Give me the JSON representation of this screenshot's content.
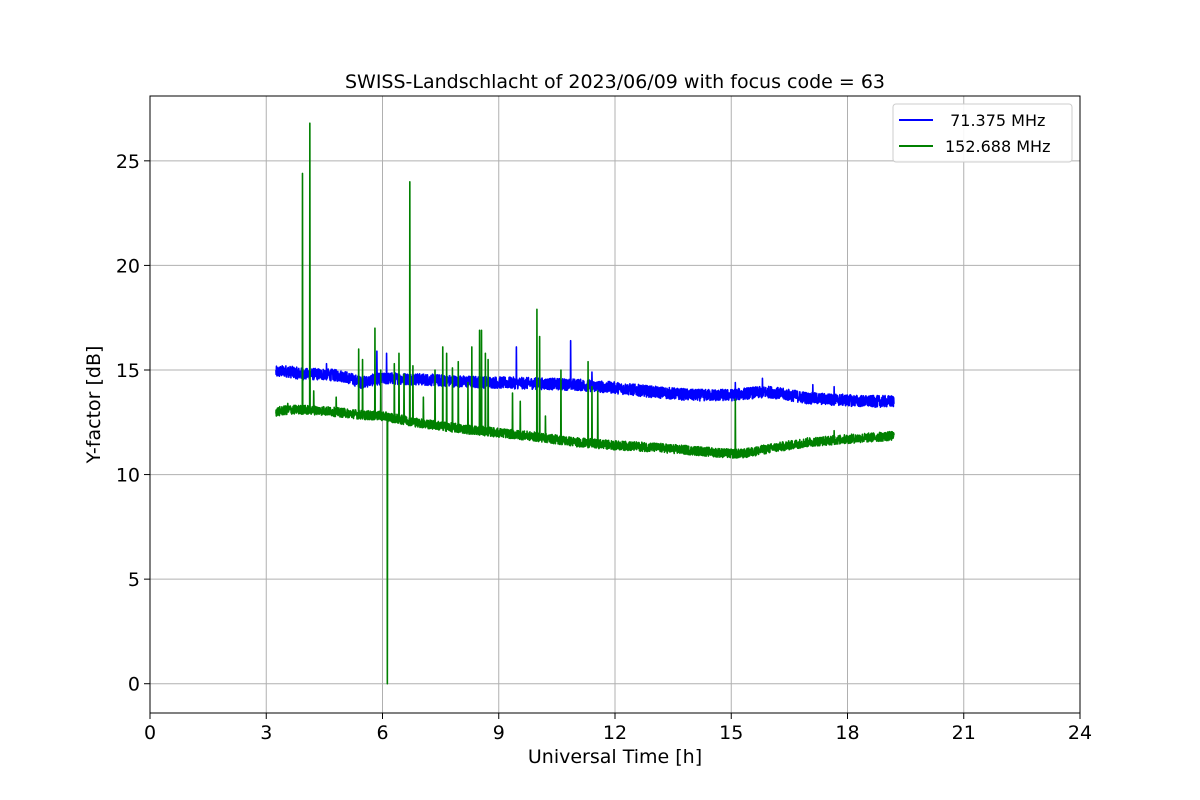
{
  "chart_data": {
    "type": "line",
    "title": "SWISS-Landschlacht of 2023/06/09 with focus code = 63",
    "xlabel": "Universal Time [h]",
    "ylabel": "Y-factor [dB]",
    "xlim": [
      0,
      24
    ],
    "ylim": [
      -1.4,
      28.1
    ],
    "xticks": [
      0,
      3,
      6,
      9,
      12,
      15,
      18,
      21,
      24
    ],
    "xtick_labels": [
      "0",
      "3",
      "6",
      "9",
      "12",
      "15",
      "18",
      "21",
      "24"
    ],
    "yticks": [
      0,
      5,
      10,
      15,
      20,
      25
    ],
    "ytick_labels": [
      "0",
      "5",
      "10",
      "15",
      "20",
      "25"
    ],
    "grid": true,
    "legend_position": "top-right",
    "series": [
      {
        "name": " 71.375 MHz",
        "color": "#0000ff",
        "baseline": [
          [
            3.25,
            14.9
          ],
          [
            3.5,
            14.95
          ],
          [
            3.8,
            14.85
          ],
          [
            4.0,
            14.8
          ],
          [
            4.5,
            14.8
          ],
          [
            5.0,
            14.7
          ],
          [
            5.3,
            14.5
          ],
          [
            5.45,
            14.4
          ],
          [
            5.6,
            14.45
          ],
          [
            5.8,
            14.55
          ],
          [
            6.2,
            14.6
          ],
          [
            7.0,
            14.55
          ],
          [
            8.0,
            14.45
          ],
          [
            9.0,
            14.4
          ],
          [
            10.0,
            14.35
          ],
          [
            11.0,
            14.3
          ],
          [
            12.0,
            14.15
          ],
          [
            13.0,
            13.95
          ],
          [
            14.0,
            13.8
          ],
          [
            15.0,
            13.8
          ],
          [
            15.5,
            13.9
          ],
          [
            16.0,
            13.95
          ],
          [
            16.5,
            13.8
          ],
          [
            17.0,
            13.65
          ],
          [
            18.0,
            13.55
          ],
          [
            18.5,
            13.5
          ],
          [
            19.2,
            13.5
          ]
        ],
        "spikes": [
          [
            4.55,
            15.3
          ],
          [
            5.85,
            15.9
          ],
          [
            6.1,
            15.8
          ],
          [
            9.45,
            16.1
          ],
          [
            10.85,
            16.4
          ],
          [
            11.4,
            14.9
          ],
          [
            15.1,
            14.4
          ],
          [
            15.8,
            14.6
          ],
          [
            17.1,
            14.3
          ],
          [
            17.65,
            14.2
          ]
        ],
        "noise_db": 0.28,
        "x_end": 19.2
      },
      {
        "name": "152.688 MHz",
        "color": "#008000",
        "baseline": [
          [
            3.25,
            13.0
          ],
          [
            3.6,
            13.1
          ],
          [
            4.0,
            13.1
          ],
          [
            4.5,
            13.05
          ],
          [
            5.0,
            12.95
          ],
          [
            5.5,
            12.85
          ],
          [
            6.0,
            12.8
          ],
          [
            7.0,
            12.45
          ],
          [
            8.0,
            12.2
          ],
          [
            9.0,
            12.0
          ],
          [
            10.0,
            11.8
          ],
          [
            11.0,
            11.55
          ],
          [
            12.0,
            11.4
          ],
          [
            13.0,
            11.3
          ],
          [
            14.0,
            11.15
          ],
          [
            15.0,
            11.0
          ],
          [
            15.3,
            11.0
          ],
          [
            16.0,
            11.25
          ],
          [
            17.0,
            11.55
          ],
          [
            18.0,
            11.7
          ],
          [
            19.2,
            11.85
          ]
        ],
        "spikes": [
          [
            3.55,
            13.4
          ],
          [
            3.93,
            24.4
          ],
          [
            4.12,
            26.8
          ],
          [
            4.22,
            14.0
          ],
          [
            4.8,
            13.7
          ],
          [
            5.38,
            16.0
          ],
          [
            5.48,
            15.5
          ],
          [
            5.8,
            17.0
          ],
          [
            5.95,
            15.0
          ],
          [
            6.12,
            0.0
          ],
          [
            6.3,
            15.3
          ],
          [
            6.42,
            15.8
          ],
          [
            6.55,
            14.8
          ],
          [
            6.7,
            24.0
          ],
          [
            6.78,
            15.2
          ],
          [
            7.05,
            13.7
          ],
          [
            7.35,
            15.0
          ],
          [
            7.55,
            16.1
          ],
          [
            7.65,
            15.8
          ],
          [
            7.8,
            15.1
          ],
          [
            7.95,
            15.4
          ],
          [
            8.2,
            14.4
          ],
          [
            8.3,
            16.1
          ],
          [
            8.5,
            16.9
          ],
          [
            8.55,
            16.9
          ],
          [
            8.65,
            15.8
          ],
          [
            8.72,
            15.5
          ],
          [
            9.35,
            13.9
          ],
          [
            9.55,
            13.5
          ],
          [
            9.98,
            17.9
          ],
          [
            10.05,
            16.6
          ],
          [
            10.2,
            12.8
          ],
          [
            10.6,
            15.0
          ],
          [
            11.3,
            15.4
          ],
          [
            11.4,
            14.2
          ],
          [
            11.55,
            14.0
          ],
          [
            15.1,
            13.6
          ],
          [
            17.65,
            12.1
          ]
        ],
        "noise_db": 0.22,
        "x_end": 19.2
      }
    ]
  }
}
